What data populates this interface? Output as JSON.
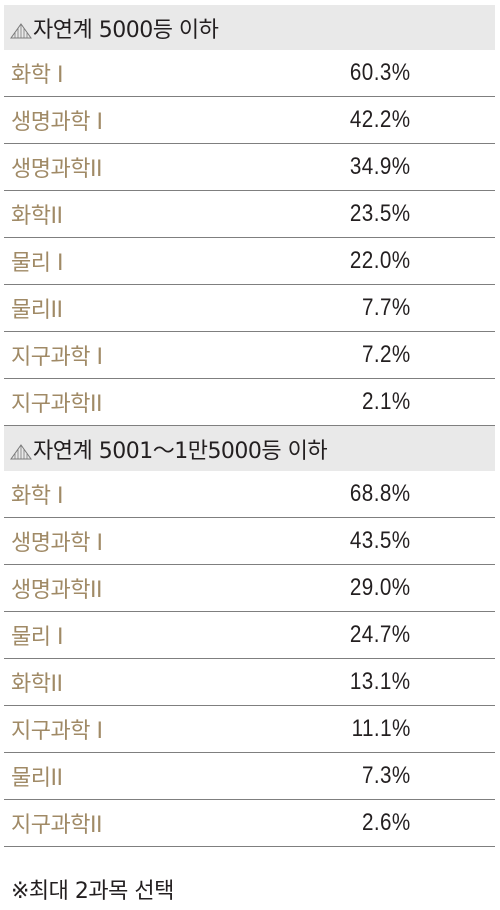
{
  "chart_data": {
    "type": "table",
    "sections": [
      {
        "title": "자연계 5000등 이하",
        "rows": [
          {
            "subject": "화학 I",
            "value": "60.3%"
          },
          {
            "subject": "생명과학 I",
            "value": "42.2%"
          },
          {
            "subject": "생명과학II",
            "value": "34.9%"
          },
          {
            "subject": "화학II",
            "value": "23.5%"
          },
          {
            "subject": "물리 I",
            "value": "22.0%"
          },
          {
            "subject": "물리II",
            "value": "7.7%"
          },
          {
            "subject": "지구과학 I",
            "value": "7.2%"
          },
          {
            "subject": "지구과학II",
            "value": "2.1%"
          }
        ]
      },
      {
        "title": "자연계 5001～1만5000등 이하",
        "rows": [
          {
            "subject": "화학 I",
            "value": "68.8%"
          },
          {
            "subject": "생명과학 I",
            "value": "43.5%"
          },
          {
            "subject": "생명과학II",
            "value": "29.0%"
          },
          {
            "subject": "물리 I",
            "value": "24.7%"
          },
          {
            "subject": "화학II",
            "value": "13.1%"
          },
          {
            "subject": "지구과학 I",
            "value": "11.1%"
          },
          {
            "subject": "물리II",
            "value": "7.3%"
          },
          {
            "subject": "지구과학II",
            "value": "2.6%"
          }
        ]
      }
    ],
    "footnote": "※최대 2과목 선택"
  },
  "colors": {
    "header_bg": "#e9e9e9",
    "subject_text": "#a08a66",
    "value_text": "#231f20",
    "divider": "#7f7f7f"
  },
  "icons": {
    "section_marker": "triangle-hatch-icon"
  }
}
